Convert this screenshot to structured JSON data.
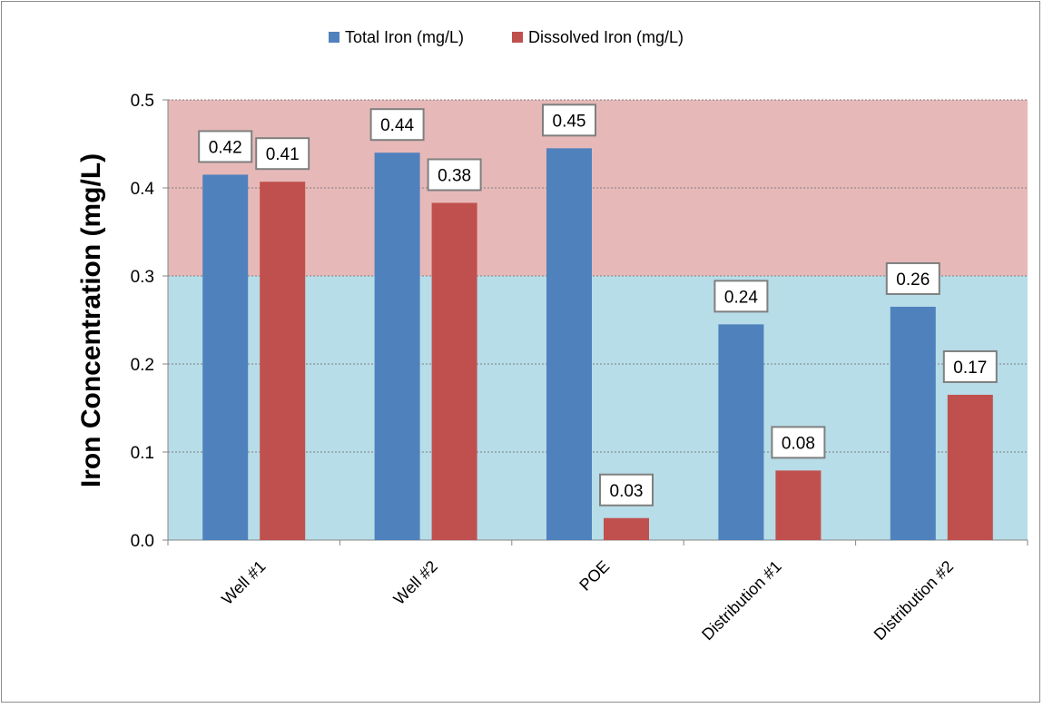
{
  "chart_data": {
    "type": "bar",
    "title": "",
    "xlabel": "",
    "ylabel": "Iron Concentration (mg/L)",
    "ylim": [
      0,
      0.5
    ],
    "yticks": [
      "0.0",
      "0.1",
      "0.2",
      "0.3",
      "0.4",
      "0.5"
    ],
    "grid": true,
    "legend_position": "top",
    "categories": [
      "Well #1",
      "Well #2",
      "POE",
      "Distribution #1",
      "Distribution #2"
    ],
    "series": [
      {
        "name": "Total Iron (mg/L)",
        "color": "#4f81bd",
        "values": [
          0.415,
          0.44,
          0.445,
          0.245,
          0.265
        ],
        "data_labels": [
          "0.42",
          "0.44",
          "0.45",
          "0.24",
          "0.26"
        ]
      },
      {
        "name": "Dissolved Iron (mg/L)",
        "color": "#c0504d",
        "values": [
          0.407,
          0.383,
          0.025,
          0.079,
          0.165
        ],
        "data_labels": [
          "0.41",
          "0.38",
          "0.03",
          "0.08",
          "0.17"
        ]
      }
    ],
    "bands": [
      {
        "from": 0.0,
        "to": 0.3,
        "color": "#b7dde8"
      },
      {
        "from": 0.3,
        "to": 0.5,
        "color": "#e6b9b8"
      }
    ]
  }
}
